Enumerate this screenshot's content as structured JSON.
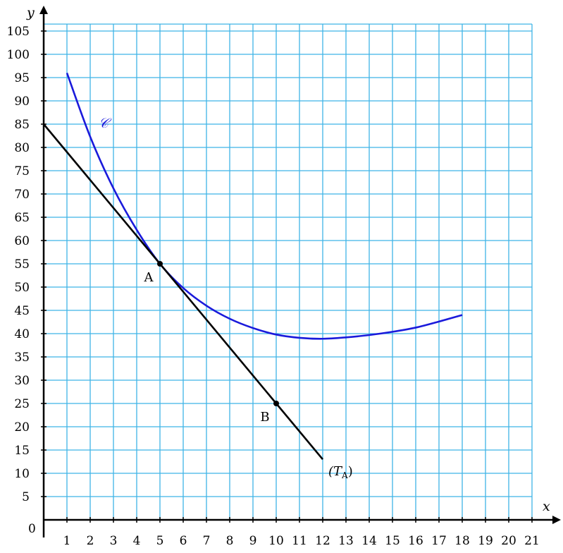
{
  "chart_data": {
    "type": "line",
    "xlabel": "x",
    "ylabel": "y",
    "origin_label": "0",
    "xlim": [
      0,
      21
    ],
    "ylim": [
      0,
      105
    ],
    "x_ticks": [
      1,
      2,
      3,
      4,
      5,
      6,
      7,
      8,
      9,
      10,
      11,
      12,
      13,
      14,
      15,
      16,
      17,
      18,
      19,
      20,
      21
    ],
    "y_ticks": [
      5,
      10,
      15,
      20,
      25,
      30,
      35,
      40,
      45,
      50,
      55,
      60,
      65,
      70,
      75,
      80,
      85,
      90,
      95,
      100,
      105
    ],
    "grid": true,
    "grid_color": "#3fb4e6",
    "series": [
      {
        "name": "𝒞",
        "color": "#1a1adb",
        "points": [
          [
            1,
            96
          ],
          [
            2,
            82.3
          ],
          [
            3,
            71.2
          ],
          [
            4,
            62.3
          ],
          [
            5,
            55
          ],
          [
            6,
            49.8
          ],
          [
            7,
            46
          ],
          [
            8,
            43.2
          ],
          [
            9,
            41.2
          ],
          [
            10,
            39.8
          ],
          [
            11,
            39.1
          ],
          [
            12,
            38.9
          ],
          [
            13,
            39.2
          ],
          [
            14,
            39.7
          ],
          [
            15,
            40.4
          ],
          [
            16,
            41.3
          ],
          [
            17,
            42.6
          ],
          [
            18,
            44
          ]
        ]
      },
      {
        "name": "(T_A)",
        "color": "#000000",
        "points": [
          [
            0,
            85
          ],
          [
            12,
            13
          ]
        ]
      }
    ],
    "labeled_points": [
      {
        "label": "A",
        "x": 5,
        "y": 55
      },
      {
        "label": "B",
        "x": 10,
        "y": 25
      }
    ],
    "tangent_label": {
      "main": "(T",
      "sub": "A",
      "close": ")"
    }
  }
}
